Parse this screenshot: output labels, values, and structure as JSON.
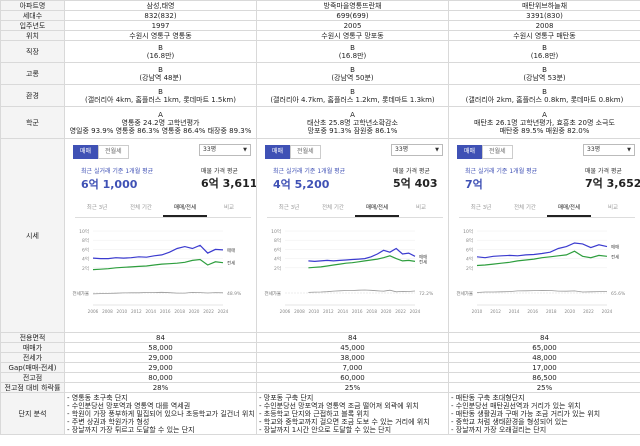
{
  "labels": {
    "apt": "아파트명",
    "households": "세대수",
    "year": "입주년도",
    "location": "위치",
    "commute": "직장",
    "elevation": "고롱",
    "environment": "환경",
    "school": "학군",
    "market": "시세",
    "area": "전용면적",
    "sale": "매매가",
    "jeonse": "전세가",
    "gap": "Gap(매매-전세)",
    "investment": "전고점",
    "investment_drop": "전고점 대비 하락률",
    "analysis": "단지 분석"
  },
  "colors": {
    "sale": "#3b3bcf",
    "jeonse": "#2e9e3e",
    "accent": "#3f51b5"
  },
  "apartments": [
    {
      "name": "삼성,태영",
      "households": "832(832)",
      "year": "1997",
      "location": "수원시 영통구 영통동",
      "commute_grade": "B",
      "commute_note": "(16.8만)",
      "elevation_grade": "B",
      "elevation_note": "(강남역 48분)",
      "env_grade": "B",
      "env_note": "(갤러리아 4km, 홈플러스 1km, 롯데마트 1.5km)",
      "school_grade": "A",
      "school_l1": "영통중 24.2명 고학년평가",
      "school_l2": "영일중 93.9% 영통중 86.3% 영통중 86.4% 태장중 89.3%",
      "panel": {
        "tab_sale": "매매",
        "tab_jeonse": "전월세",
        "size": "33평",
        "recent": "최근 실거래 기준 1개월 평균",
        "sales_avg": "매물 가격 평균",
        "recent_price": "6억 1,000",
        "sales_price": "6억 3,611",
        "period_tabs": [
          "최근 3년",
          "전체 기간",
          "매매/전세",
          "비교"
        ],
        "period_active": 2,
        "legend_sale": "매매",
        "legend_jeonse": "전세",
        "gap_label": "전세가율",
        "gap_value": "48.9%",
        "y_ticks": [
          "10억",
          "8억",
          "6억",
          "4억",
          "2억"
        ],
        "x_ticks": [
          "2006",
          "2008",
          "2010",
          "2012",
          "2014",
          "2016",
          "2018",
          "2020",
          "2022",
          "2024"
        ]
      },
      "area": "84",
      "sale": "58,000",
      "jeonse": "29,000",
      "gap": "29,000",
      "investment": "80,000",
      "investment_drop": "28%",
      "analysis": [
        "- 영통동 초구축 단지",
        "- 수인분당선 망포역과 영통역 대를 역세권",
        "- 학원이 가장 풍부하게 밀집되어 있으나 초등학교가 길건너 위치",
        "- 주변 상권과 학원가가 형성",
        "- 장날까지 가장 튀르고 도달할 수 있는 단지"
      ]
    },
    {
      "name": "방죽마을영통뜨란채",
      "households": "699(699)",
      "year": "2005",
      "location": "수원시 영통구 망포동",
      "commute_grade": "B",
      "commute_note": "(16.8만)",
      "elevation_grade": "B",
      "elevation_note": "(강남역 50분)",
      "env_grade": "B",
      "env_note": "(갤러리아 4.7km, 홈플러스 1.2km, 롯데마트 1.3km)",
      "school_grade": "A",
      "school_l1": "태산초 25.8명 고학년소확감소",
      "school_l2": "망포중 91.3% 잠원중 86.1%",
      "panel": {
        "tab_sale": "매매",
        "tab_jeonse": "전월세",
        "size": "33평",
        "recent": "최근 실거래 기준 1개월 평균",
        "sales_avg": "매물 가격 평균",
        "recent_price": "4억 5,200",
        "sales_price": "5억 403",
        "period_tabs": [
          "최근 3년",
          "전체 기간",
          "매매/전세",
          "비교"
        ],
        "period_active": 2,
        "legend_sale": "매매",
        "legend_jeonse": "전세",
        "gap_label": "전세가율",
        "gap_value": "72.2%",
        "y_ticks": [
          "10억",
          "8억",
          "6억",
          "4억",
          "2억"
        ],
        "x_ticks": [
          "2006",
          "2008",
          "2010",
          "2012",
          "2014",
          "2016",
          "2018",
          "2020",
          "2022",
          "2024"
        ]
      },
      "area": "84",
      "sale": "45,000",
      "jeonse": "38,000",
      "gap": "7,000",
      "investment": "60,000",
      "investment_drop": "25%",
      "analysis": [
        "- 망포동 구축 단지",
        "- 수인분당선 망포역과 영통역 조금 떨어져 외곽에 위치",
        "- 초등학교 단지와 근접하고 블록 위치",
        "- 학교와 중학교까지 걸으면 조금 도보 수 있는 거리에 위치",
        "- 장날까지 1시간 안으로 도달할 수 있는 단지"
      ]
    },
    {
      "name": "매탄위브하늘채",
      "households": "3391(830)",
      "year": "2008",
      "location": "수원시 영통구 매탄동",
      "commute_grade": "B",
      "commute_note": "(16.8만)",
      "elevation_grade": "B",
      "elevation_note": "(강남역 53분)",
      "env_grade": "B",
      "env_note": "(갤러리아 2km, 홈플러스 0.8km, 롯데마트 0.8km)",
      "school_grade": "A",
      "school_l1": "매탄초 26.1명 고학년평가, 효흥초 20명 소극도",
      "school_l2": "매탄중 89.5% 매원중 82.0%",
      "panel": {
        "tab_sale": "매매",
        "tab_jeonse": "전월세",
        "size": "33평",
        "recent": "최근 실거래 기준 1개월 평균",
        "sales_avg": "매물 가격 평균",
        "recent_price": "7억",
        "sales_price": "7억 3,652",
        "period_tabs": [
          "최근 3년",
          "전체 기간",
          "매매/전세",
          "비교"
        ],
        "period_active": 2,
        "legend_sale": "매매",
        "legend_jeonse": "전세",
        "gap_label": "전세가율",
        "gap_value": "65.6%",
        "y_ticks": [
          "10억",
          "8억",
          "6억",
          "4억",
          "2억"
        ],
        "x_ticks": [
          "2010",
          "2012",
          "2014",
          "2016",
          "2018",
          "2020",
          "2022",
          "2024"
        ]
      },
      "area": "84",
      "sale": "65,000",
      "jeonse": "48,000",
      "gap": "17,000",
      "investment": "86,500",
      "investment_drop": "25%",
      "analysis": [
        "- 매탄동 구축 초대형단지",
        "- 수인분당선 매탄권선역과 거리가 있는 위치",
        "- 매탄동 생활권과 구매 가능 조금 거리가 있는 위치",
        "- 중학교 처럼 생태환경을 형성되어 있는",
        "- 장날까지 가장 오래걸리는 단지"
      ]
    }
  ]
}
